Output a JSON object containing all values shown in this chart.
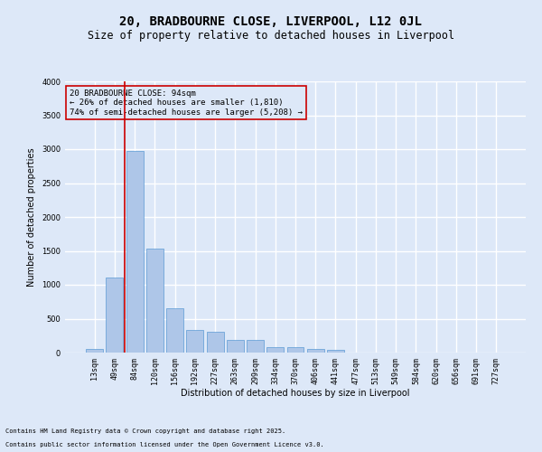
{
  "title": "20, BRADBOURNE CLOSE, LIVERPOOL, L12 0JL",
  "subtitle": "Size of property relative to detached houses in Liverpool",
  "xlabel": "Distribution of detached houses by size in Liverpool",
  "ylabel": "Number of detached properties",
  "footnote1": "Contains HM Land Registry data © Crown copyright and database right 2025.",
  "footnote2": "Contains public sector information licensed under the Open Government Licence v3.0.",
  "annotation_line1": "20 BRADBOURNE CLOSE: 94sqm",
  "annotation_line2": "← 26% of detached houses are smaller (1,810)",
  "annotation_line3": "74% of semi-detached houses are larger (5,208) →",
  "bar_color": "#aec6e8",
  "bar_edge_color": "#5b9bd5",
  "vline_color": "#cc0000",
  "annotation_box_color": "#cc0000",
  "background_color": "#dde8f8",
  "grid_color": "#ffffff",
  "categories": [
    "13sqm",
    "49sqm",
    "84sqm",
    "120sqm",
    "156sqm",
    "192sqm",
    "227sqm",
    "263sqm",
    "299sqm",
    "334sqm",
    "370sqm",
    "406sqm",
    "441sqm",
    "477sqm",
    "513sqm",
    "549sqm",
    "584sqm",
    "620sqm",
    "656sqm",
    "691sqm",
    "727sqm"
  ],
  "values": [
    55,
    1110,
    2970,
    1530,
    650,
    330,
    310,
    185,
    185,
    80,
    75,
    55,
    45,
    5,
    5,
    5,
    5,
    5,
    5,
    5,
    5
  ],
  "ylim": [
    0,
    4000
  ],
  "yticks": [
    0,
    500,
    1000,
    1500,
    2000,
    2500,
    3000,
    3500,
    4000
  ],
  "title_fontsize": 10,
  "subtitle_fontsize": 8.5,
  "label_fontsize": 7,
  "tick_fontsize": 6,
  "annotation_fontsize": 6.5,
  "footnote_fontsize": 5
}
